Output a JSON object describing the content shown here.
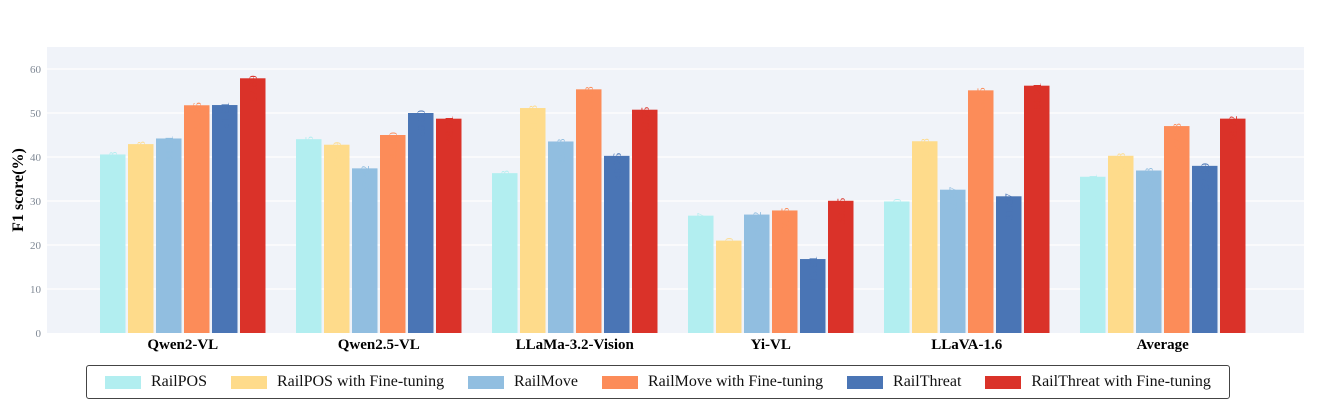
{
  "chart_data": {
    "type": "bar",
    "title": "",
    "xlabel": "",
    "ylabel": "F1 score(%)",
    "ylim": [
      0,
      65
    ],
    "yticks": [
      0,
      10,
      20,
      30,
      40,
      50,
      60
    ],
    "grid": true,
    "legend_position": "bottom",
    "categories": [
      "Qwen2-VL",
      "Qwen2.5-VL",
      "LLaMa-3.2-Vision",
      "Yi-VL",
      "LLaVA-1.6",
      "Average"
    ],
    "series": [
      {
        "name": "RailPOS",
        "color": "#b2eef0",
        "values": [
          40.58,
          44.05,
          36.33,
          26.67,
          29.9,
          35.51
        ]
      },
      {
        "name": "RailPOS with Fine-tuning",
        "color": "#fedb8b",
        "values": [
          42.93,
          42.79,
          51.13,
          21.0,
          43.58,
          40.28
        ]
      },
      {
        "name": "RailMove",
        "color": "#91bee0",
        "values": [
          44.21,
          37.42,
          43.53,
          26.92,
          32.57,
          36.93
        ]
      },
      {
        "name": "RailMove with Fine-tuning",
        "color": "#fc8c59",
        "values": [
          51.76,
          45.0,
          55.38,
          27.85,
          55.15,
          47.03
        ]
      },
      {
        "name": "RailThreat",
        "color": "#4a75b5",
        "values": [
          51.81,
          50.0,
          40.26,
          16.81,
          31.07,
          37.99
        ]
      },
      {
        "name": "RailThreat with Fine-tuning",
        "color": "#da3229",
        "values": [
          57.89,
          48.71,
          50.75,
          30.05,
          56.21,
          48.72
        ]
      }
    ]
  }
}
